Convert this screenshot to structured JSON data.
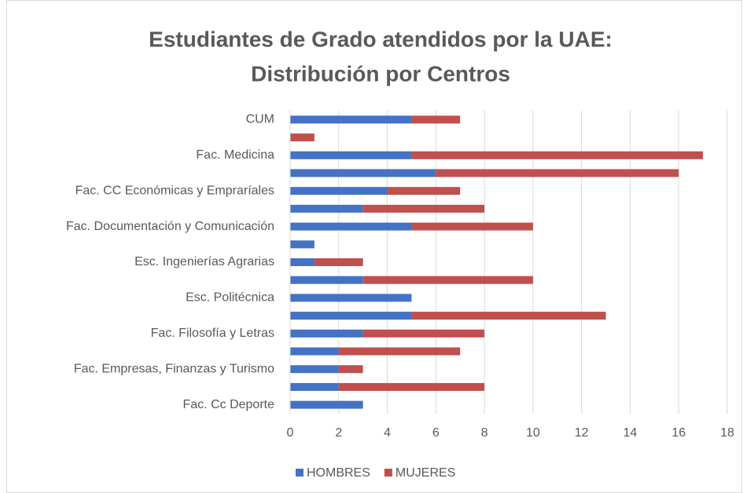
{
  "chart_data": {
    "type": "stacked-bar-horizontal",
    "title": [
      "Estudiantes de Grado atendidos por la UAE:",
      "Distribución por Centros"
    ],
    "categories": [
      "CUM",
      null,
      "Fac. Medicina",
      null,
      "Fac. CC Económicas y Empraríales",
      null,
      "Fac. Documentación y Comunicación",
      null,
      "Esc. Ingenierías Agrarias",
      null,
      "Esc. Politécnica",
      null,
      "Fac. Filosofía y Letras",
      null,
      "Fac. Empresas, Finanzas y Turismo",
      null,
      "Fac. Cc Deporte"
    ],
    "series": [
      {
        "name": "HOMBRES",
        "color": "#4472c4",
        "values": [
          5,
          0,
          5,
          6,
          4,
          3,
          5,
          1,
          1,
          3,
          5,
          5,
          3,
          2,
          2,
          2,
          3
        ]
      },
      {
        "name": "MUJERES",
        "color": "#c0504d",
        "values": [
          2,
          1,
          12,
          10,
          3,
          5,
          5,
          0,
          2,
          7,
          0,
          8,
          5,
          5,
          1,
          6,
          0
        ]
      }
    ],
    "xlim": [
      0,
      18
    ],
    "xticks": [
      0,
      2,
      4,
      6,
      8,
      10,
      12,
      14,
      16,
      18
    ],
    "grid": true,
    "legend": "bottom"
  }
}
